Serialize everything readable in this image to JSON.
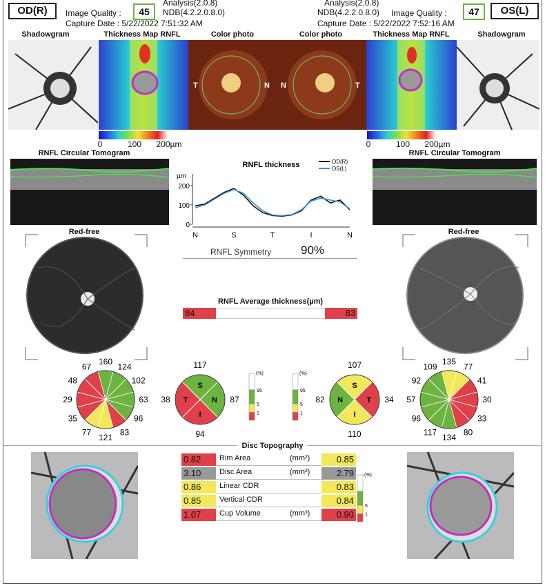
{
  "left_header": {
    "eye": "OD(R)",
    "image_quality_label": "Image Quality :",
    "image_quality": "45",
    "analysis": "Analysis(2.0.8)",
    "ndb": "NDB(4.2.2.0.8.0)",
    "capture_date": "Capture Date : 5/22/2022 7:51:32 AM"
  },
  "right_header": {
    "eye": "OS(L)",
    "image_quality_label": "Image Quality :",
    "image_quality": "47",
    "analysis": "Analysis(2.0.8)",
    "ndb": "NDB(4.2.2.0.8.0)",
    "capture_date": "Capture Date : 5/22/2022 7:52:16 AM"
  },
  "left_panels": {
    "shadowgram": "Shadowgram",
    "thickness_map": "Thickness Map RNFL",
    "color_photo": "Color photo",
    "scale": [
      "0",
      "100",
      "200µm"
    ],
    "temporal": "T",
    "nasal": "N",
    "tomogram": "RNFL Circular Tomogram",
    "red_free": "Red-free"
  },
  "right_panels": {
    "shadowgram": "Shadowgram",
    "thickness_map": "Thickness Map RNFL",
    "color_photo": "Color photo",
    "scale": [
      "0",
      "100",
      "200µm"
    ],
    "temporal": "T",
    "nasal": "N",
    "tomogram": "RNFL Circular Tomogram",
    "red_free": "Red-free"
  },
  "chart_data": {
    "type": "line",
    "title": "RNFL thickness",
    "y_label": "µm",
    "categories": [
      "N",
      null,
      null,
      null,
      "S",
      null,
      null,
      null,
      "T",
      null,
      null,
      null,
      "I",
      null,
      null,
      null,
      "N"
    ],
    "series": [
      {
        "name": "OD(R)",
        "color": "#111111",
        "values": [
          95,
          105,
          135,
          165,
          185,
          150,
          95,
          60,
          45,
          42,
          48,
          70,
          125,
          145,
          110,
          125,
          75
        ]
      },
      {
        "name": "OS(L)",
        "color": "#3a8fd8",
        "values": [
          85,
          100,
          130,
          160,
          180,
          160,
          110,
          70,
          48,
          45,
          50,
          75,
          120,
          135,
          125,
          115,
          80
        ]
      }
    ],
    "ylim": [
      0,
      260
    ],
    "yticks": [
      0,
      100,
      200
    ]
  },
  "symmetry": {
    "label": "RNFL Symmetry",
    "value": "90%"
  },
  "average_thickness": {
    "title": "RNFL Average thickness(µm)",
    "od": "84",
    "os": "83"
  },
  "pct_legend": {
    "unit": "(%)",
    "ticks": [
      "95",
      "5",
      "1"
    ]
  },
  "clock_od": [
    {
      "value": "160",
      "color": "#6db33f"
    },
    {
      "value": "124",
      "color": "#6db33f"
    },
    {
      "value": "102",
      "color": "#6db33f"
    },
    {
      "value": "63",
      "color": "#6db33f"
    },
    {
      "value": "96",
      "color": "#6db33f"
    },
    {
      "value": "83",
      "color": "#e0404a"
    },
    {
      "value": "121",
      "color": "#f2e85a"
    },
    {
      "value": "77",
      "color": "#f2e85a"
    },
    {
      "value": "35",
      "color": "#e0404a"
    },
    {
      "value": "29",
      "color": "#e0404a"
    },
    {
      "value": "48",
      "color": "#e0404a"
    },
    {
      "value": "67",
      "color": "#e0404a"
    }
  ],
  "quadrant_od": [
    {
      "name": "S",
      "value": "117",
      "color": "#6db33f"
    },
    {
      "name": "N",
      "value": "87",
      "color": "#6db33f"
    },
    {
      "name": "I",
      "value": "94",
      "color": "#e0404a"
    },
    {
      "name": "T",
      "value": "38",
      "color": "#e0404a"
    }
  ],
  "quadrant_os": [
    {
      "name": "S",
      "value": "107",
      "color": "#f2e85a"
    },
    {
      "name": "T",
      "value": "34",
      "color": "#e0404a"
    },
    {
      "name": "I",
      "value": "110",
      "color": "#f2e85a"
    },
    {
      "name": "N",
      "value": "82",
      "color": "#6db33f"
    }
  ],
  "clock_os": [
    {
      "value": "135",
      "color": "#f2e85a"
    },
    {
      "value": "77",
      "color": "#f2e85a"
    },
    {
      "value": "41",
      "color": "#e0404a"
    },
    {
      "value": "30",
      "color": "#e0404a"
    },
    {
      "value": "33",
      "color": "#e0404a"
    },
    {
      "value": "80",
      "color": "#e0404a"
    },
    {
      "value": "134",
      "color": "#6db33f"
    },
    {
      "value": "117",
      "color": "#6db33f"
    },
    {
      "value": "96",
      "color": "#6db33f"
    },
    {
      "value": "57",
      "color": "#6db33f"
    },
    {
      "value": "92",
      "color": "#6db33f"
    },
    {
      "value": "109",
      "color": "#6db33f"
    }
  ],
  "disc_topography": {
    "title": "Disc Topography",
    "rows": [
      {
        "label": "Rim Area",
        "unit": "(mm²)",
        "od": "0.82",
        "od_color": "#e0404a",
        "os": "0.85",
        "os_color": "#f2e85a"
      },
      {
        "label": "Disc Area",
        "unit": "(mm²)",
        "od": "3.10",
        "od_color": "#999999",
        "os": "2.79",
        "os_color": "#999999"
      },
      {
        "label": "Linear CDR",
        "unit": null,
        "od": "0.86",
        "od_color": "#f2e85a",
        "os": "0.83",
        "os_color": "#f2e85a"
      },
      {
        "label": "Vertical CDR",
        "unit": null,
        "od": "0.85",
        "od_color": "#f2e85a",
        "os": "0.84",
        "os_color": "#f2e85a"
      },
      {
        "label": "Cup Volume",
        "unit": "(mm³)",
        "od": "1.07",
        "od_color": "#e0404a",
        "os": "0.90",
        "os_color": "#e0404a"
      }
    ]
  }
}
